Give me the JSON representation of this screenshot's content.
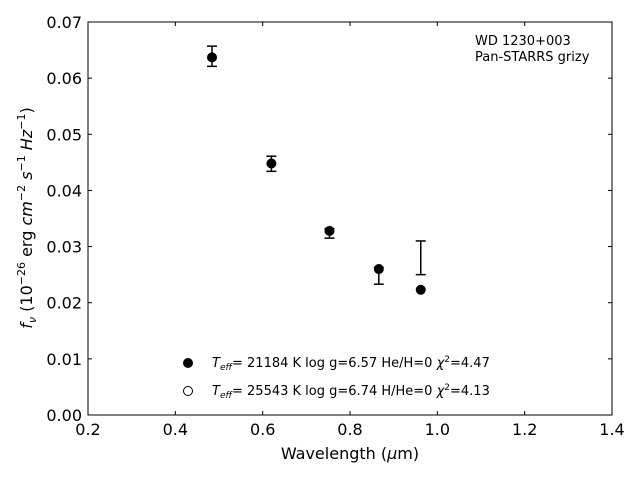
{
  "chart_data": {
    "type": "scatter",
    "annotation": [
      "WD 1230+003",
      "Pan-STARRS grizy"
    ],
    "xlabel_pre": "Wavelength (",
    "xlabel_mu": "μ",
    "xlabel_post": "m)",
    "ylabel": {
      "f": "f",
      "nu": "ν",
      "unit_open": " (10",
      "exp26": "−26",
      "erg": " erg ",
      "cm": "cm",
      "exp2": "−2",
      "s": " s",
      "exp1a": "−1",
      "hz": " Hz",
      "exp1b": "−1",
      "close": ")"
    },
    "xlim": [
      0.2,
      1.4
    ],
    "ylim": [
      0.0,
      0.07
    ],
    "xticks": [
      "0.2",
      "0.4",
      "0.6",
      "0.8",
      "1.0",
      "1.2",
      "1.4"
    ],
    "yticks": [
      "0.00",
      "0.01",
      "0.02",
      "0.03",
      "0.04",
      "0.05",
      "0.06",
      "0.07"
    ],
    "observed": [
      {
        "x": 0.484,
        "y": 0.0639,
        "ylo": 0.0621,
        "yhi": 0.0657
      },
      {
        "x": 0.62,
        "y": 0.0447,
        "ylo": 0.0434,
        "yhi": 0.0461
      },
      {
        "x": 0.753,
        "y": 0.0326,
        "ylo": 0.0315,
        "yhi": 0.0332
      },
      {
        "x": 0.866,
        "y": 0.0258,
        "ylo": 0.0233,
        "yhi": 0.0263
      },
      {
        "x": 0.962,
        "y": null,
        "ylo": 0.025,
        "yhi": 0.031
      }
    ],
    "series": [
      {
        "name": "T_eff= 21184 K  log g=6.57  He/H=0  χ²=4.47",
        "marker": "filled",
        "x": [
          0.484,
          0.62,
          0.753,
          0.866,
          0.962
        ],
        "y": [
          0.0637,
          0.0448,
          0.0328,
          0.026,
          0.0223
        ]
      },
      {
        "name": "T_eff= 25543 K  log g=6.74  H/He=0  χ²=4.13",
        "marker": "open",
        "x": [],
        "y": []
      }
    ],
    "legend": [
      {
        "pre": "T",
        "sub": "eff",
        "post": "= 21184 K  log g=6.57  He/H=0  ",
        "chi": "χ",
        "sup": "2",
        "tail": "=4.47"
      },
      {
        "pre": "T",
        "sub": "eff",
        "post": "= 25543 K  log g=6.74  H/He=0  ",
        "chi": "χ",
        "sup": "2",
        "tail": "=4.13"
      }
    ],
    "legend_placement": "lower-center",
    "grid": false
  }
}
